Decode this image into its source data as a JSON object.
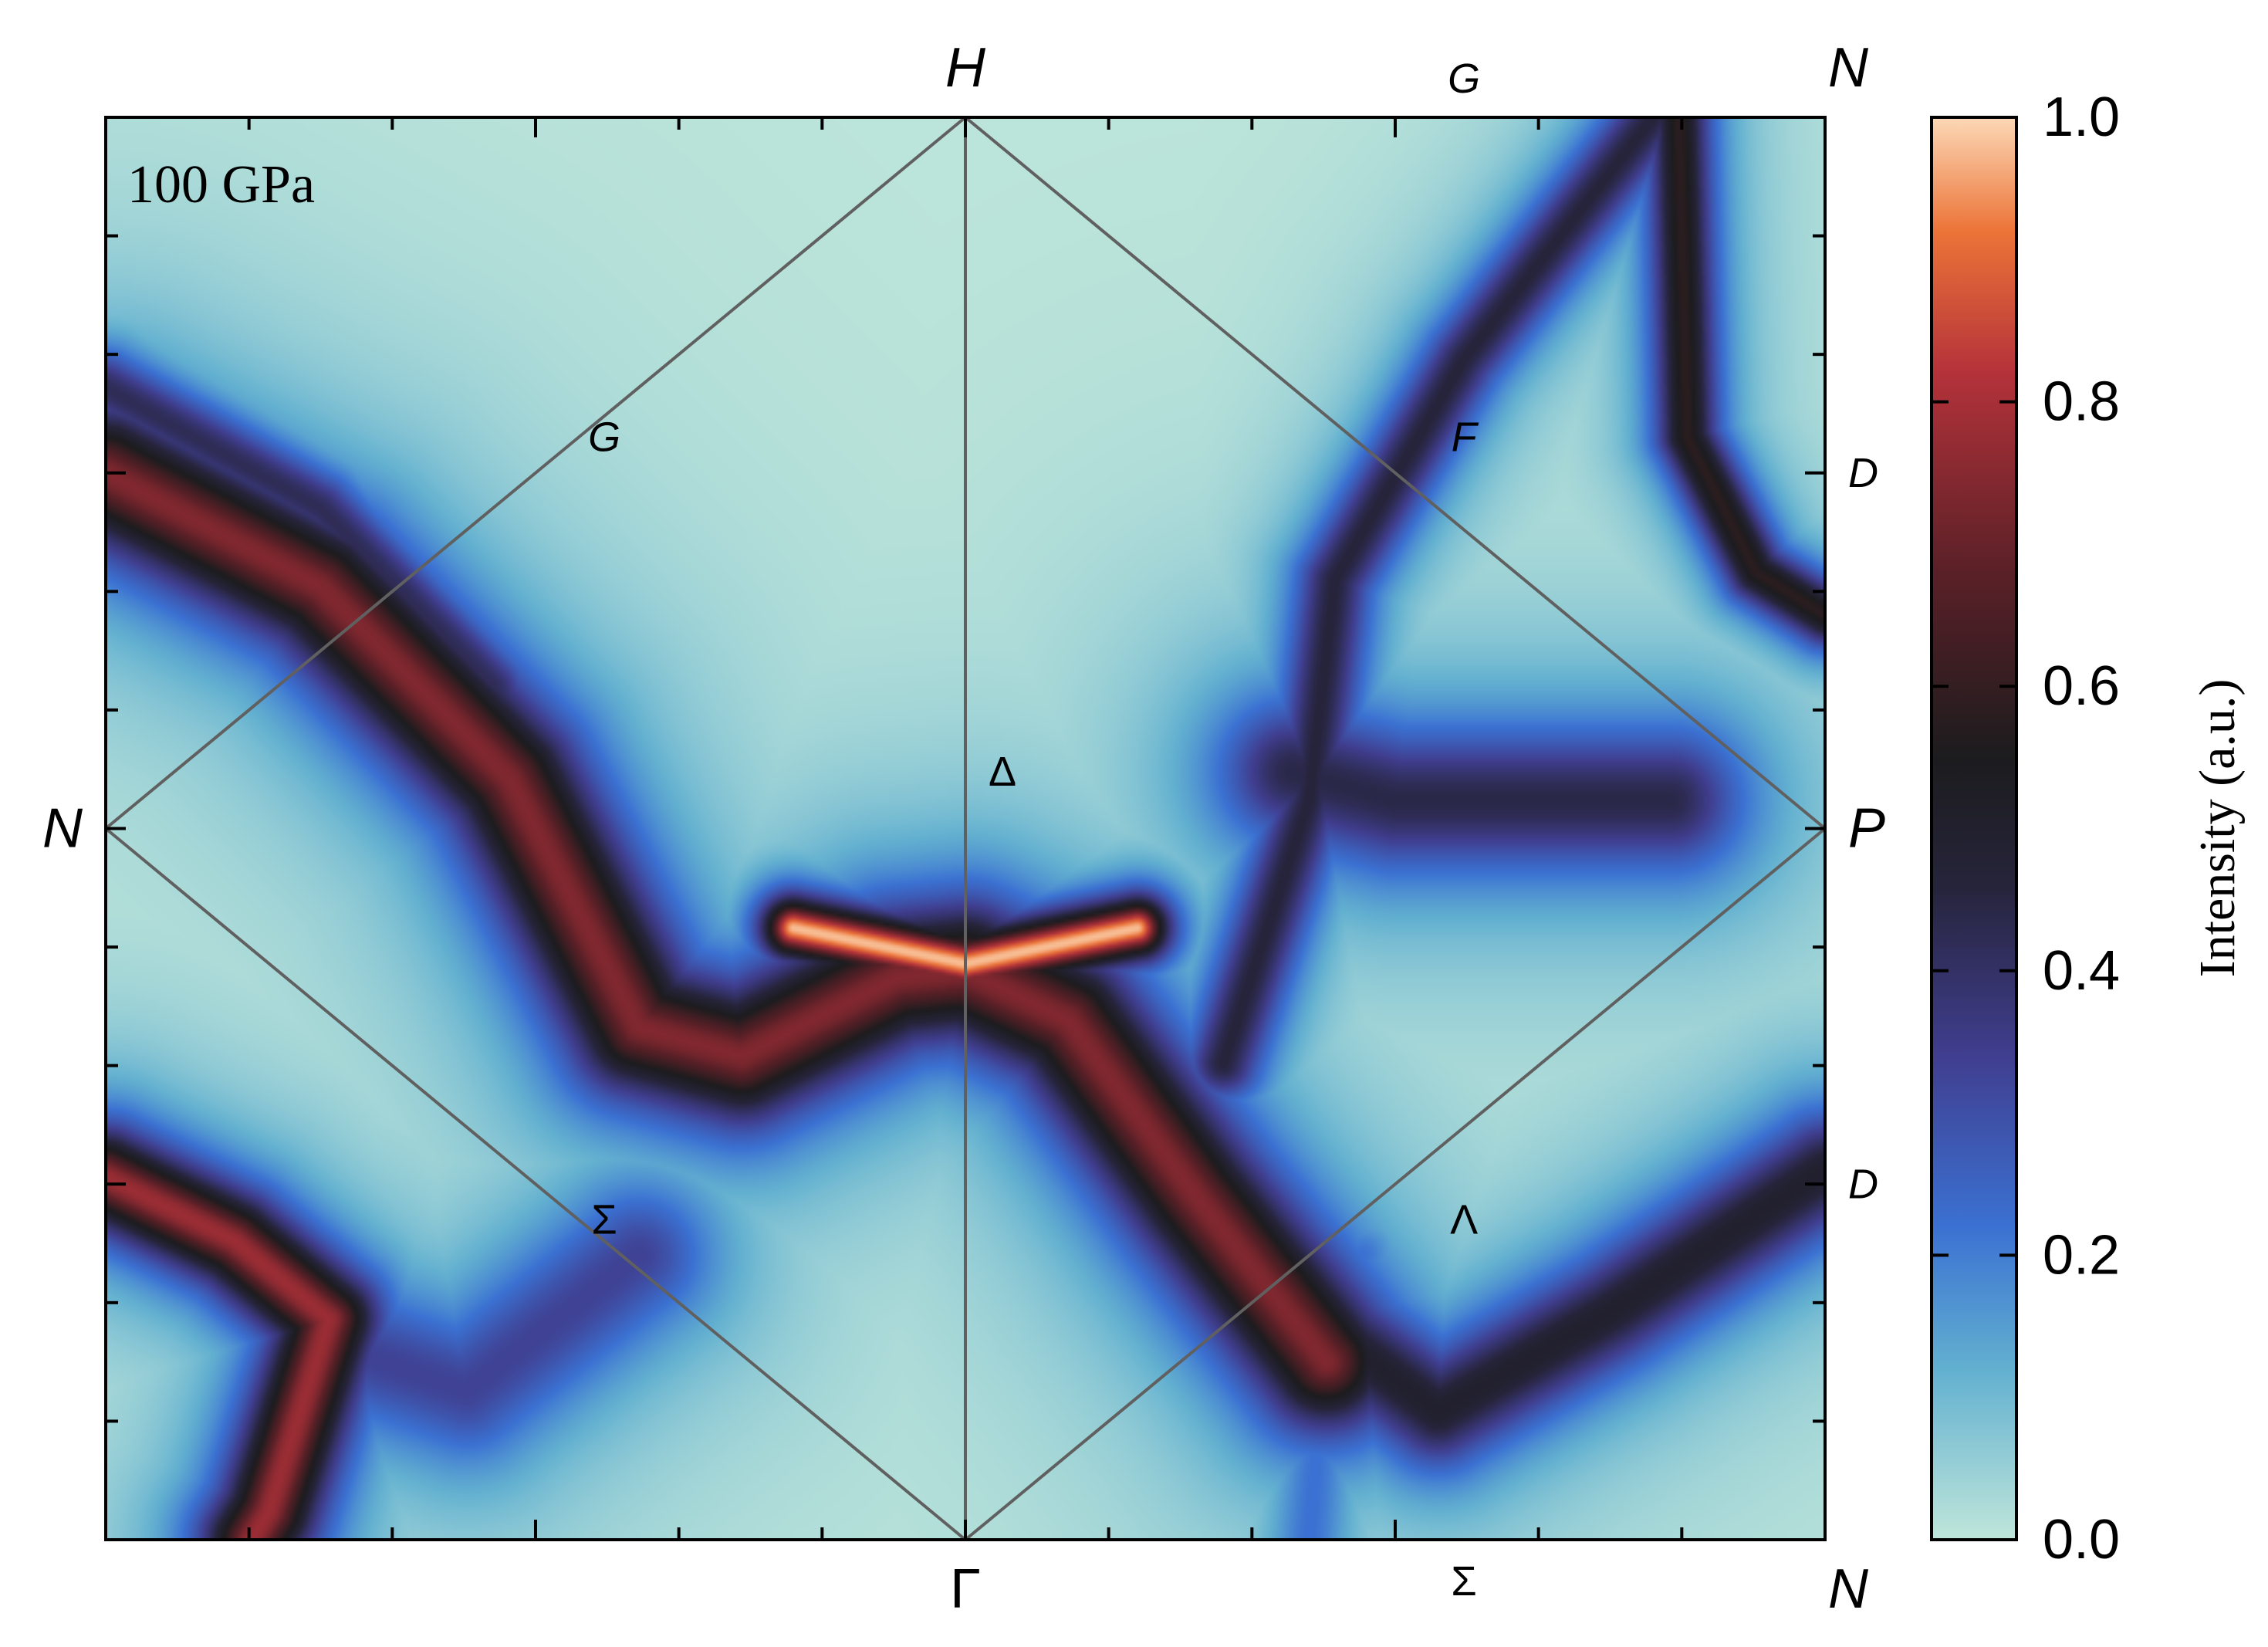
{
  "chart_data": {
    "type": "heatmap",
    "panel_label": "100 GPa",
    "colormap": {
      "label": "Intensity (a.u.)",
      "range": [
        0.0,
        1.0
      ],
      "ticks": [
        {
          "value": 0.0,
          "label": "0.0"
        },
        {
          "value": 0.2,
          "label": "0.2"
        },
        {
          "value": 0.4,
          "label": "0.4"
        },
        {
          "value": 0.6,
          "label": "0.6"
        },
        {
          "value": 0.8,
          "label": "0.8"
        },
        {
          "value": 1.0,
          "label": "1.0"
        }
      ],
      "stops": [
        {
          "value": 0.0,
          "color": "#bfe6da"
        },
        {
          "value": 0.12,
          "color": "#62b0d0"
        },
        {
          "value": 0.22,
          "color": "#3b71d2"
        },
        {
          "value": 0.34,
          "color": "#403e8f"
        },
        {
          "value": 0.46,
          "color": "#26243a"
        },
        {
          "value": 0.55,
          "color": "#1c1c1e"
        },
        {
          "value": 0.68,
          "color": "#5a2027"
        },
        {
          "value": 0.82,
          "color": "#b4323a"
        },
        {
          "value": 0.92,
          "color": "#ec7438"
        },
        {
          "value": 1.0,
          "color": "#fcd8b6"
        }
      ]
    },
    "domain": {
      "x": [
        -1,
        1
      ],
      "y": [
        -1,
        1
      ]
    },
    "symmetry_points": {
      "corners": [
        {
          "label": "H",
          "x": 0,
          "y": 1
        },
        {
          "label": "N",
          "x": 1,
          "y": 1
        },
        {
          "label": "N",
          "x": -1,
          "y": 0
        },
        {
          "label": "P",
          "x": 1,
          "y": 0
        },
        {
          "label": "Γ",
          "x": 0,
          "y": -1
        },
        {
          "label": "N",
          "x": 1,
          "y": -1
        }
      ],
      "lines": [
        {
          "label": "G",
          "x": 0.58,
          "y": 1
        },
        {
          "label": "G",
          "x": -0.42,
          "y": 0.55
        },
        {
          "label": "F",
          "x": 0.58,
          "y": 0.55
        },
        {
          "label": "Δ",
          "x": 0.05,
          "y": 0.08
        },
        {
          "label": "D",
          "x": 1,
          "y": 0.5
        },
        {
          "label": "D",
          "x": 1,
          "y": -0.5
        },
        {
          "label": "Σ",
          "x": -0.42,
          "y": -0.55
        },
        {
          "label": "Λ",
          "x": 0.58,
          "y": -0.55
        },
        {
          "label": "Σ",
          "x": 0.58,
          "y": -1
        }
      ]
    },
    "bz_path": [
      [
        0,
        1
      ],
      [
        1,
        0
      ],
      [
        0,
        -1
      ],
      [
        -1,
        0
      ],
      [
        0,
        1
      ],
      [
        0,
        -1
      ]
    ],
    "intensity_features": [
      {
        "path": [
          [
            -1,
            0.5
          ],
          [
            -0.75,
            0.34
          ],
          [
            -0.53,
            0.07
          ],
          [
            -0.38,
            -0.28
          ],
          [
            -0.26,
            -0.32
          ],
          [
            -0.08,
            -0.21
          ],
          [
            0,
            -0.2
          ],
          [
            0.12,
            -0.27
          ],
          [
            0.27,
            -0.52
          ],
          [
            0.42,
            -0.75
          ]
        ],
        "width": 0.07,
        "peak": 0.74
      },
      {
        "path": [
          [
            -1,
            0.62
          ],
          [
            -0.75,
            0.45
          ],
          [
            -0.55,
            0.2
          ],
          [
            -0.42,
            -0.17
          ]
        ],
        "width": 0.045,
        "peak": 0.42
      },
      {
        "path": [
          [
            -0.2,
            -0.14
          ],
          [
            0,
            -0.19
          ],
          [
            0.2,
            -0.14
          ]
        ],
        "width": 0.03,
        "peak": 0.98
      },
      {
        "path": [
          [
            0.12,
            -0.25
          ],
          [
            0.22,
            -0.38
          ],
          [
            0.35,
            -0.64
          ],
          [
            0.55,
            -0.82
          ],
          [
            0.75,
            -0.68
          ],
          [
            1,
            -0.48
          ]
        ],
        "width": 0.065,
        "peak": 0.5
      },
      {
        "path": [
          [
            -1,
            -0.49
          ],
          [
            -0.85,
            -0.58
          ],
          [
            -0.74,
            -0.69
          ],
          [
            -0.81,
            -0.96
          ],
          [
            -0.83,
            -1
          ]
        ],
        "width": 0.05,
        "peak": 0.78
      },
      {
        "path": [
          [
            -0.76,
            -0.69
          ],
          [
            -0.7,
            -0.74
          ],
          [
            -0.58,
            -0.79
          ],
          [
            -0.38,
            -0.6
          ]
        ],
        "width": 0.09,
        "peak": 0.33
      },
      {
        "path": [
          [
            0.3,
            -0.33
          ],
          [
            0.4,
            0.04
          ],
          [
            0.43,
            0.35
          ],
          [
            0.58,
            0.66
          ],
          [
            0.8,
            1
          ]
        ],
        "width": 0.045,
        "peak": 0.46
      },
      {
        "path": [
          [
            0.38,
            0.08
          ],
          [
            0.5,
            0.04
          ],
          [
            0.67,
            0.04
          ],
          [
            0.82,
            0.04
          ]
        ],
        "width": 0.085,
        "peak": 0.44
      },
      {
        "path": [
          [
            0.83,
            1
          ],
          [
            0.84,
            0.55
          ],
          [
            0.92,
            0.36
          ],
          [
            1,
            0.3
          ]
        ],
        "width": 0.035,
        "peak": 0.58
      },
      {
        "path": [
          [
            0.4,
            -1
          ],
          [
            0.42,
            -0.72
          ],
          [
            0.46,
            -0.6
          ]
        ],
        "width": 0.05,
        "peak": 0.22
      }
    ]
  }
}
